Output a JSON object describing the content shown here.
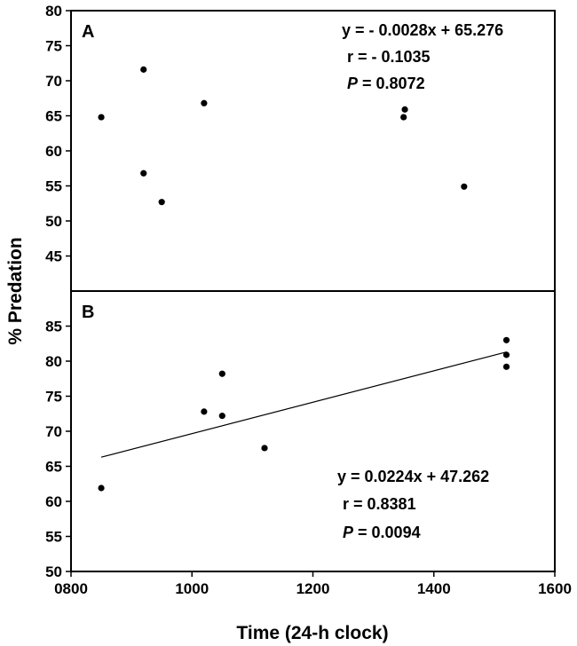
{
  "chart_data": [
    {
      "panel": "A",
      "type": "scatter",
      "x": [
        850,
        920,
        920,
        950,
        1020,
        1350,
        1352,
        1450
      ],
      "y": [
        64.8,
        71.6,
        56.8,
        52.7,
        66.8,
        64.8,
        65.9,
        54.9
      ],
      "ylim": [
        40,
        80
      ],
      "yticks": [
        "45",
        "50",
        "55",
        "60",
        "65",
        "70",
        "75",
        "80"
      ],
      "regression": {
        "equation": "y = - 0.0028x + 65.276",
        "r": "r = - 0.1035",
        "p_label": "P",
        "p_value": " = 0.8072"
      }
    },
    {
      "panel": "B",
      "type": "scatter",
      "x": [
        850,
        1020,
        1050,
        1050,
        1120,
        1520,
        1520,
        1520
      ],
      "y": [
        61.9,
        72.8,
        78.2,
        72.2,
        67.6,
        83.0,
        80.9,
        79.2
      ],
      "ylim": [
        50,
        90
      ],
      "yticks": [
        "50",
        "55",
        "60",
        "65",
        "70",
        "75",
        "80",
        "85"
      ],
      "fit_line": {
        "x": [
          850,
          1520
        ],
        "slope": 0.0224,
        "intercept": 47.262
      },
      "regression": {
        "equation": "y = 0.0224x + 47.262",
        "r": "r = 0.8381",
        "p_label": "P",
        "p_value": " = 0.0094"
      }
    }
  ],
  "shared": {
    "xlim": [
      800,
      1600
    ],
    "xticks": [
      "0800",
      "1000",
      "1200",
      "1400",
      "1600"
    ],
    "xlabel": "Time (24-h clock)",
    "ylabel": "% Predation",
    "grid": false,
    "legend": "none"
  }
}
